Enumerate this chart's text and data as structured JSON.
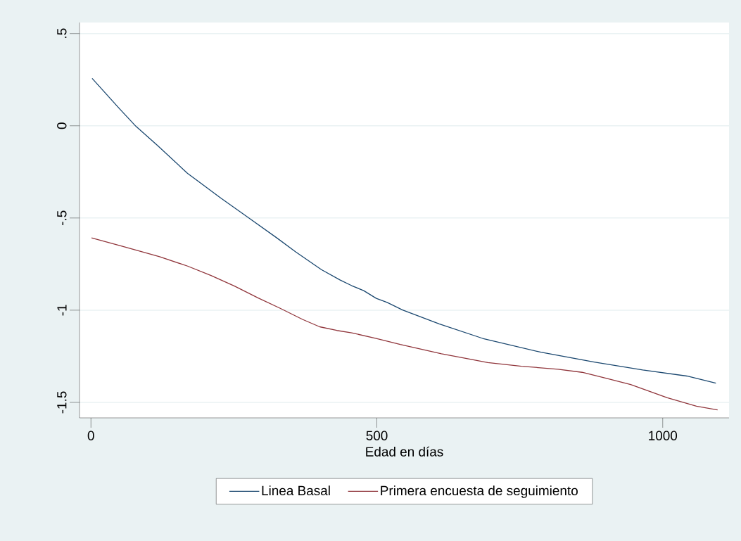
{
  "chart_data": {
    "type": "line",
    "xlabel": "Edad en días",
    "xlim": [
      -20,
      1116
    ],
    "ylim": [
      -1.584,
      0.56
    ],
    "xticks": [
      0,
      500,
      1000
    ],
    "yticks": [
      {
        "value": -1.5,
        "label": "-1.5"
      },
      {
        "value": -1,
        "label": "-1"
      },
      {
        "value": -0.5,
        "label": "-.5"
      },
      0,
      {
        "value": 0.5,
        "label": ".5"
      }
    ],
    "grid": "y",
    "legend": "bottom",
    "line_style": "solid",
    "series": [
      {
        "name": "Linea Basal",
        "color": "#1a476f",
        "x": [
          2,
          50,
          79,
          116,
          169,
          227,
          276,
          325,
          358,
          403,
          436,
          456,
          477,
          499,
          518,
          545,
          609,
          685,
          787,
          880,
          965,
          1042,
          1093
        ],
        "values": [
          0.257,
          0.092,
          -0.004,
          -0.106,
          -0.258,
          -0.392,
          -0.5,
          -0.608,
          -0.684,
          -0.78,
          -0.837,
          -0.867,
          -0.894,
          -0.936,
          -0.958,
          -0.999,
          -1.074,
          -1.153,
          -1.228,
          -1.281,
          -1.324,
          -1.357,
          -1.396
        ]
      },
      {
        "name": "Primera encuesta de seguimiento",
        "color": "#90353b",
        "x": [
          1,
          54,
          120,
          169,
          210,
          251,
          292,
          331,
          370,
          400,
          430,
          456,
          499,
          541,
          613,
          694,
          753,
          817,
          859,
          902,
          944,
          1008,
          1059,
          1096
        ],
        "values": [
          -0.608,
          -0.653,
          -0.71,
          -0.761,
          -0.812,
          -0.869,
          -0.933,
          -0.99,
          -1.05,
          -1.09,
          -1.11,
          -1.123,
          -1.153,
          -1.186,
          -1.236,
          -1.284,
          -1.304,
          -1.32,
          -1.337,
          -1.37,
          -1.403,
          -1.475,
          -1.521,
          -1.541
        ]
      }
    ]
  }
}
